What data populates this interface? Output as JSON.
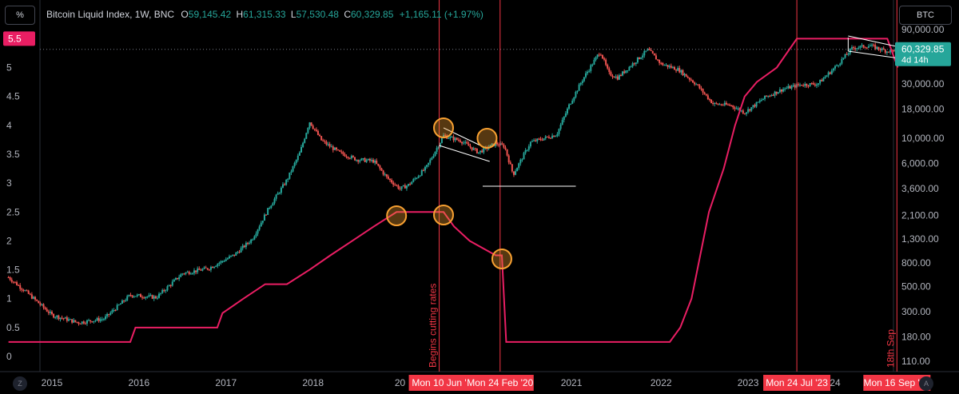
{
  "header": {
    "symbol": "Bitcoin Liquid Index, 1W, BNC",
    "open_key": "O",
    "open": "59,145.42",
    "high_key": "H",
    "high": "61,315.33",
    "low_key": "L",
    "low": "57,530.48",
    "close_key": "C",
    "close": "60,329.85",
    "change": "+1,165.11 (+1.97%)"
  },
  "left_axis_button": "%",
  "right_axis_button": "BTC",
  "corner_left": "Z",
  "corner_right": "A",
  "colors": {
    "background": "#000000",
    "candle_up": "#26a69a",
    "candle_down": "#ef5350",
    "rate_line": "#e91e63",
    "event_line": "#f23645",
    "highlight_circle": "#f7a031",
    "annotation_line": "#ffffff"
  },
  "price_label": {
    "value": "60,329.85",
    "countdown": "4d 14h"
  },
  "left_axis_highlight": "5.5",
  "vertical_annotations": [
    {
      "date_label": "Mon 10 Jun '",
      "note": "Begins cutting rates"
    },
    {
      "date_label": "Mon 24 Feb '20",
      "note": ""
    },
    {
      "date_label": "Mon 24 Jul '23",
      "note": ""
    },
    {
      "date_label": "Mon 16 Sep '24",
      "note": "18th Sep"
    }
  ],
  "chart_data": {
    "type": "line",
    "x_ticks": [
      "2015",
      "2016",
      "2017",
      "2018",
      "20",
      "2021",
      "2022",
      "2023",
      "24"
    ],
    "left_axis": {
      "unit": "%",
      "ticks": [
        "0",
        "0.5",
        "1",
        "1.5",
        "2",
        "2.5",
        "3",
        "3.5",
        "4",
        "4.5",
        "5"
      ],
      "ylim": [
        0,
        5.5
      ]
    },
    "right_axis": {
      "scale": "log",
      "ticks": [
        "90,000.00",
        "50,000.00",
        "30,000.00",
        "18,000.00",
        "10,000.00",
        "6,000.00",
        "3,600.00",
        "2,100.00",
        "1,300.00",
        "800.00",
        "500.00",
        "300.00",
        "180.00",
        "110.00"
      ]
    },
    "series": [
      {
        "axis": "left",
        "x": [
          2014.5,
          2015.9,
          2015.96,
          2016.9,
          2016.96,
          2017.2,
          2017.45,
          2017.7,
          2017.96,
          2018.2,
          2018.45,
          2018.7,
          2018.96,
          2019.5,
          2019.62,
          2019.8,
          2020.1,
          2020.17,
          2020.22,
          2022.1,
          2022.22,
          2022.35,
          2022.45,
          2022.55,
          2022.72,
          2022.85,
          2022.96,
          2023.1,
          2023.33,
          2023.56,
          2024.6,
          2024.72
        ],
        "values": [
          0.25,
          0.25,
          0.5,
          0.5,
          0.75,
          1.0,
          1.25,
          1.25,
          1.5,
          1.75,
          2.0,
          2.25,
          2.5,
          2.5,
          2.25,
          2.0,
          1.75,
          1.75,
          0.25,
          0.25,
          0.5,
          1.0,
          1.75,
          2.5,
          3.25,
          4.0,
          4.5,
          4.75,
          5.0,
          5.5,
          5.5,
          5.0
        ]
      },
      {
        "axis": "right",
        "x": [
          2014.5,
          2014.7,
          2015.0,
          2015.3,
          2015.6,
          2015.9,
          2016.2,
          2016.5,
          2016.8,
          2017.1,
          2017.3,
          2017.5,
          2017.7,
          2017.85,
          2017.96,
          2018.1,
          2018.3,
          2018.5,
          2018.7,
          2018.85,
          2019.0,
          2019.1,
          2019.3,
          2019.5,
          2019.7,
          2019.9,
          2020.1,
          2020.2,
          2020.3,
          2020.5,
          2020.8,
          2020.95,
          2021.1,
          2021.3,
          2021.4,
          2021.5,
          2021.7,
          2021.85,
          2022.0,
          2022.2,
          2022.4,
          2022.6,
          2022.8,
          2022.96,
          2023.2,
          2023.4,
          2023.6,
          2023.8,
          2024.0,
          2024.2,
          2024.4,
          2024.6,
          2024.72
        ],
        "values": [
          600,
          450,
          280,
          240,
          260,
          420,
          400,
          650,
          720,
          950,
          1300,
          2500,
          4300,
          7500,
          14000,
          9500,
          7500,
          6500,
          6300,
          4500,
          3600,
          3900,
          5500,
          10500,
          9500,
          7500,
          9000,
          8500,
          4800,
          9200,
          10800,
          20000,
          33000,
          58000,
          37000,
          34000,
          47000,
          60000,
          45000,
          40000,
          30000,
          20000,
          19500,
          16800,
          23000,
          27000,
          29500,
          30000,
          42000,
          62000,
          65000,
          58000,
          60330
        ]
      }
    ]
  }
}
